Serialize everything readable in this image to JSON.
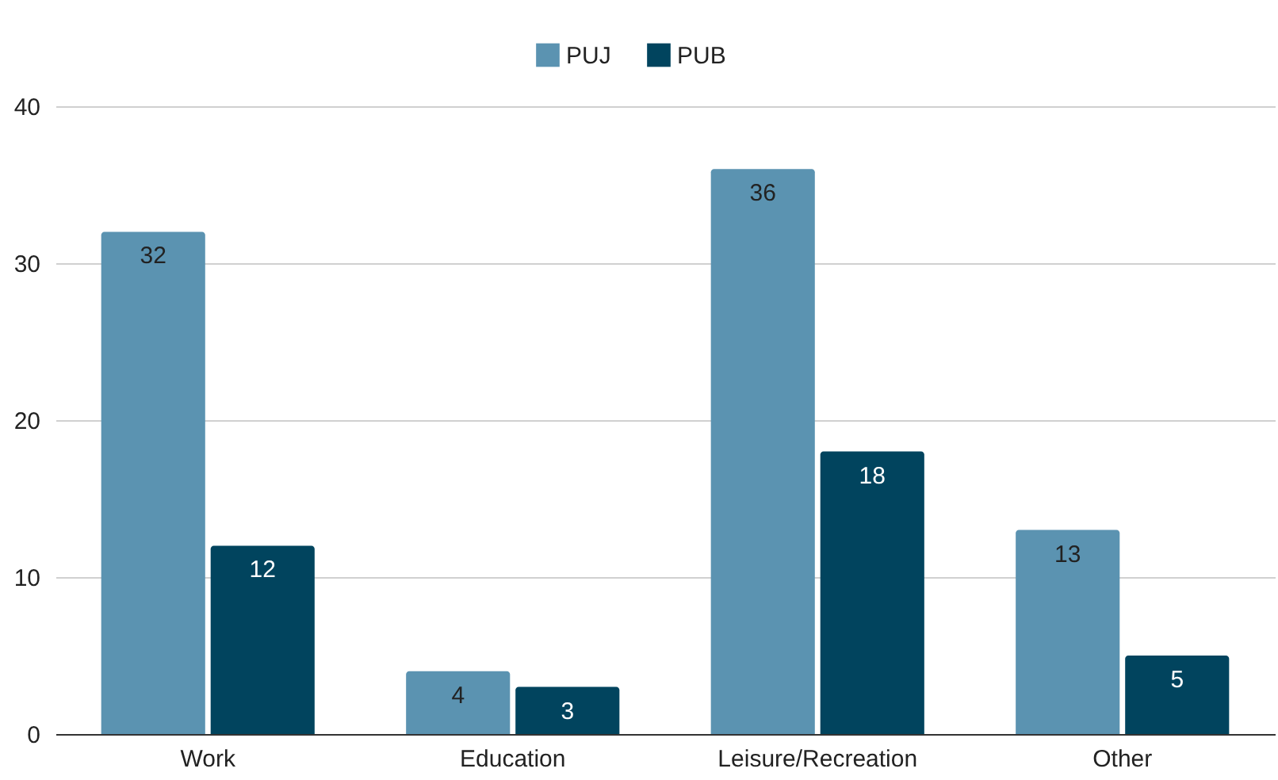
{
  "chart_data": {
    "type": "bar",
    "categories": [
      "Work",
      "Education",
      "Leisure/Recreation",
      "Other"
    ],
    "series": [
      {
        "name": "PUJ",
        "color": "#5b93b1",
        "values": [
          32,
          4,
          36,
          13
        ]
      },
      {
        "name": "PUB",
        "color": "#01445e",
        "values": [
          12,
          3,
          18,
          5
        ]
      }
    ],
    "ylim": [
      0,
      40
    ],
    "yticks": [
      0,
      10,
      20,
      30,
      40
    ],
    "grid": "y",
    "legend": "top",
    "data_labels": true
  }
}
